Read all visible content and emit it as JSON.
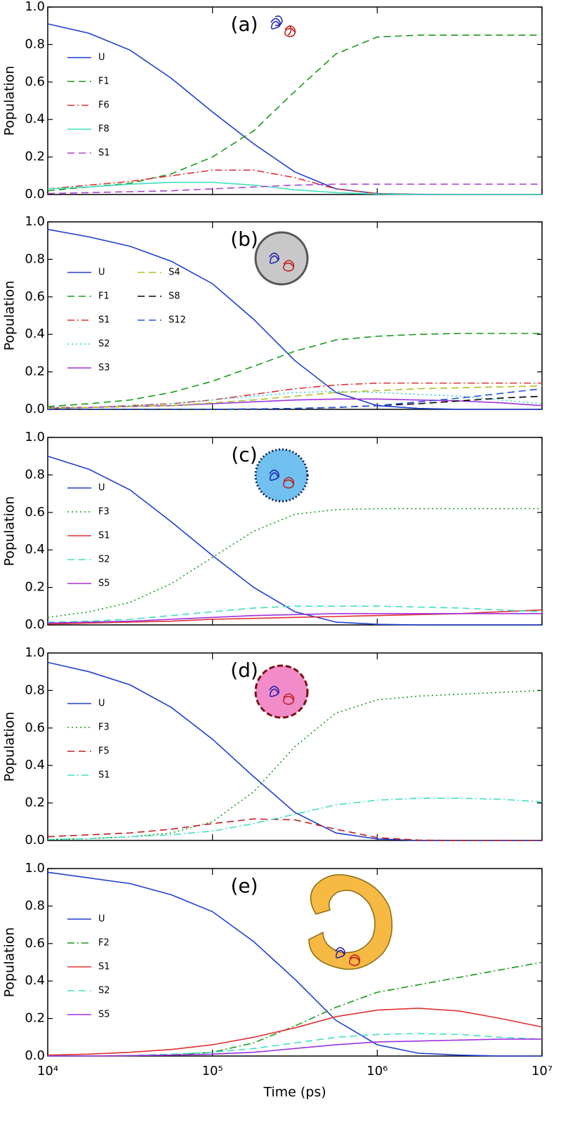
{
  "chart_data": [
    {
      "type": "line",
      "annotation": "(a)",
      "ylabel": "Population",
      "log_x": true,
      "xlim": [
        10000,
        10000000
      ],
      "xticks": [
        10000,
        100000,
        1000000,
        10000000
      ],
      "ylim": [
        0,
        1
      ],
      "yticks": [
        {
          "value": 0,
          "label": "0.0"
        },
        0.2,
        0.4,
        0.6,
        0.8,
        {
          "value": 1,
          "label": "1.0"
        }
      ],
      "x": [
        10000,
        17800,
        31600,
        56200,
        100000,
        178000,
        316000,
        562000,
        1000000,
        1780000,
        3160000,
        5620000,
        10000000
      ],
      "series": [
        {
          "name": "U",
          "color": "#1f3fd0",
          "dash": "solid",
          "values": [
            0.91,
            0.86,
            0.77,
            0.62,
            0.44,
            0.27,
            0.12,
            0.03,
            0.005,
            0.001,
            0,
            0,
            0
          ]
        },
        {
          "name": "F1",
          "color": "#1a9a1a",
          "dash": "dashed",
          "values": [
            0.02,
            0.04,
            0.06,
            0.11,
            0.2,
            0.34,
            0.55,
            0.75,
            0.84,
            0.85,
            0.85,
            0.85,
            0.85
          ]
        },
        {
          "name": "F6",
          "color": "#e03030",
          "dash": "dashdot",
          "values": [
            0.03,
            0.05,
            0.07,
            0.1,
            0.13,
            0.13,
            0.09,
            0.03,
            0.005,
            0,
            0,
            0,
            0
          ]
        },
        {
          "name": "F8",
          "color": "#40e0c0",
          "dash": "solid",
          "values": [
            0.03,
            0.04,
            0.055,
            0.065,
            0.065,
            0.05,
            0.025,
            0.01,
            0.002,
            0,
            0,
            0,
            0
          ]
        },
        {
          "name": "S1",
          "color": "#b040d0",
          "dash": "dashed",
          "values": [
            0.005,
            0.01,
            0.015,
            0.02,
            0.03,
            0.04,
            0.05,
            0.055,
            0.055,
            0.055,
            0.055,
            0.055,
            0.055
          ]
        }
      ]
    },
    {
      "type": "line",
      "annotation": "(b)",
      "ylabel": "Population",
      "log_x": true,
      "xlim": [
        10000,
        10000000
      ],
      "xticks": [
        10000,
        100000,
        1000000,
        10000000
      ],
      "ylim": [
        0,
        1
      ],
      "yticks": [
        {
          "value": 0,
          "label": "0.0"
        },
        0.2,
        0.4,
        0.6,
        0.8,
        {
          "value": 1,
          "label": "1.0"
        }
      ],
      "x": [
        10000,
        17800,
        31600,
        56200,
        100000,
        178000,
        316000,
        562000,
        1000000,
        1780000,
        3160000,
        5620000,
        10000000
      ],
      "series": [
        {
          "name": "U",
          "color": "#1f3fd0",
          "dash": "solid",
          "values": [
            0.96,
            0.92,
            0.87,
            0.79,
            0.67,
            0.48,
            0.26,
            0.09,
            0.02,
            0.005,
            0,
            0,
            0
          ]
        },
        {
          "name": "F1",
          "color": "#1a9a1a",
          "dash": "dashed",
          "values": [
            0.015,
            0.03,
            0.05,
            0.09,
            0.15,
            0.23,
            0.31,
            0.37,
            0.39,
            0.4,
            0.405,
            0.405,
            0.405
          ]
        },
        {
          "name": "S1",
          "color": "#e03030",
          "dash": "dashdot",
          "values": [
            0.01,
            0.01,
            0.02,
            0.03,
            0.05,
            0.08,
            0.11,
            0.13,
            0.14,
            0.14,
            0.14,
            0.14,
            0.14
          ]
        },
        {
          "name": "S2",
          "color": "#30d0d0",
          "dash": "dotted",
          "values": [
            0.01,
            0.01,
            0.02,
            0.03,
            0.05,
            0.07,
            0.09,
            0.095,
            0.09,
            0.08,
            0.07,
            0.05,
            0.03
          ]
        },
        {
          "name": "S3",
          "color": "#a030e0",
          "dash": "solid",
          "values": [
            0.005,
            0.01,
            0.015,
            0.02,
            0.03,
            0.04,
            0.05,
            0.055,
            0.055,
            0.05,
            0.045,
            0.035,
            0.02
          ]
        },
        {
          "name": "S4",
          "color": "#b0c020",
          "dash": "dashed",
          "values": [
            0.005,
            0.01,
            0.015,
            0.02,
            0.035,
            0.05,
            0.07,
            0.09,
            0.1,
            0.11,
            0.115,
            0.12,
            0.125
          ]
        },
        {
          "name": "S8",
          "color": "#000000",
          "dash": "dashed",
          "values": [
            0,
            0,
            0,
            0,
            0,
            0.002,
            0.005,
            0.01,
            0.02,
            0.03,
            0.045,
            0.06,
            0.07
          ]
        },
        {
          "name": "S12",
          "color": "#2050e0",
          "dash": "dashed",
          "values": [
            0,
            0,
            0,
            0,
            0,
            0.002,
            0.005,
            0.01,
            0.02,
            0.04,
            0.06,
            0.085,
            0.11
          ]
        }
      ]
    },
    {
      "type": "line",
      "annotation": "(c)",
      "ylabel": "Population",
      "log_x": true,
      "xlim": [
        10000,
        10000000
      ],
      "xticks": [
        10000,
        100000,
        1000000,
        10000000
      ],
      "ylim": [
        0,
        1
      ],
      "yticks": [
        {
          "value": 0,
          "label": "0.0"
        },
        0.2,
        0.4,
        0.6,
        0.8,
        {
          "value": 1,
          "label": "1.0"
        }
      ],
      "x": [
        10000,
        17800,
        31600,
        56200,
        100000,
        178000,
        316000,
        562000,
        1000000,
        1780000,
        3160000,
        5620000,
        10000000
      ],
      "series": [
        {
          "name": "U",
          "color": "#1f3fd0",
          "dash": "solid",
          "values": [
            0.9,
            0.83,
            0.72,
            0.55,
            0.37,
            0.2,
            0.07,
            0.015,
            0.003,
            0,
            0,
            0,
            0
          ]
        },
        {
          "name": "F3",
          "color": "#1a9a1a",
          "dash": "dotted",
          "values": [
            0.04,
            0.07,
            0.12,
            0.22,
            0.36,
            0.5,
            0.59,
            0.615,
            0.62,
            0.62,
            0.62,
            0.62,
            0.62
          ]
        },
        {
          "name": "S1",
          "color": "#e03030",
          "dash": "solid",
          "values": [
            0.005,
            0.01,
            0.015,
            0.02,
            0.03,
            0.035,
            0.04,
            0.045,
            0.05,
            0.055,
            0.06,
            0.07,
            0.08
          ]
        },
        {
          "name": "S2",
          "color": "#40e0c0",
          "dash": "dashed",
          "values": [
            0.015,
            0.02,
            0.03,
            0.05,
            0.07,
            0.09,
            0.1,
            0.1,
            0.1,
            0.095,
            0.09,
            0.08,
            0.07
          ]
        },
        {
          "name": "S5",
          "color": "#a030e0",
          "dash": "solid",
          "values": [
            0.01,
            0.015,
            0.02,
            0.03,
            0.04,
            0.05,
            0.055,
            0.06,
            0.06,
            0.06,
            0.06,
            0.06,
            0.06
          ]
        }
      ]
    },
    {
      "type": "line",
      "annotation": "(d)",
      "ylabel": "Population",
      "log_x": true,
      "xlim": [
        10000,
        10000000
      ],
      "xticks": [
        10000,
        100000,
        1000000,
        10000000
      ],
      "ylim": [
        0,
        1
      ],
      "yticks": [
        {
          "value": 0,
          "label": "0.0"
        },
        0.2,
        0.4,
        0.6,
        0.8,
        {
          "value": 1,
          "label": "1.0"
        }
      ],
      "x": [
        10000,
        17800,
        31600,
        56200,
        100000,
        178000,
        316000,
        562000,
        1000000,
        1780000,
        3160000,
        5620000,
        10000000
      ],
      "series": [
        {
          "name": "U",
          "color": "#1f3fd0",
          "dash": "solid",
          "values": [
            0.95,
            0.9,
            0.83,
            0.71,
            0.54,
            0.34,
            0.15,
            0.04,
            0.008,
            0,
            0,
            0,
            0
          ]
        },
        {
          "name": "F3",
          "color": "#1a9a1a",
          "dash": "dotted",
          "values": [
            0.005,
            0.01,
            0.02,
            0.04,
            0.1,
            0.26,
            0.5,
            0.68,
            0.75,
            0.77,
            0.78,
            0.79,
            0.8
          ]
        },
        {
          "name": "F5",
          "color": "#c02020",
          "dash": "dashed",
          "values": [
            0.02,
            0.03,
            0.04,
            0.06,
            0.09,
            0.115,
            0.11,
            0.06,
            0.015,
            0.002,
            0,
            0,
            0
          ]
        },
        {
          "name": "S1",
          "color": "#40e0c0",
          "dash": "dashdot",
          "values": [
            0.005,
            0.01,
            0.02,
            0.03,
            0.05,
            0.09,
            0.14,
            0.19,
            0.215,
            0.225,
            0.225,
            0.22,
            0.205
          ]
        }
      ]
    },
    {
      "type": "line",
      "annotation": "(e)",
      "ylabel": "Population",
      "xlabel": "Time (ps)",
      "log_x": true,
      "xlim": [
        10000,
        10000000
      ],
      "xticks": [
        {
          "value": 10000,
          "label": "10⁴"
        },
        {
          "value": 100000,
          "label": "10⁵"
        },
        {
          "value": 1000000,
          "label": "10⁶"
        },
        {
          "value": 10000000,
          "label": "10⁷"
        }
      ],
      "ylim": [
        0,
        1
      ],
      "yticks": [
        {
          "value": 0,
          "label": "0.0"
        },
        0.2,
        0.4,
        0.6,
        0.8,
        {
          "value": 1,
          "label": "1.0"
        }
      ],
      "x": [
        10000,
        17800,
        31600,
        56200,
        100000,
        178000,
        316000,
        562000,
        1000000,
        1780000,
        3160000,
        5620000,
        10000000
      ],
      "series": [
        {
          "name": "U",
          "color": "#1f3fd0",
          "dash": "solid",
          "values": [
            0.98,
            0.95,
            0.92,
            0.86,
            0.77,
            0.61,
            0.41,
            0.19,
            0.06,
            0.015,
            0.005,
            0,
            0
          ]
        },
        {
          "name": "F2",
          "color": "#1a9a1a",
          "dash": "dashdot",
          "values": [
            0,
            0,
            0.002,
            0.005,
            0.02,
            0.07,
            0.16,
            0.26,
            0.34,
            0.38,
            0.42,
            0.46,
            0.5
          ]
        },
        {
          "name": "S1",
          "color": "#e03030",
          "dash": "solid",
          "values": [
            0.005,
            0.01,
            0.02,
            0.035,
            0.06,
            0.1,
            0.15,
            0.21,
            0.245,
            0.255,
            0.24,
            0.2,
            0.155
          ]
        },
        {
          "name": "S2",
          "color": "#40e0c0",
          "dash": "dashed",
          "values": [
            0,
            0,
            0.003,
            0.01,
            0.02,
            0.04,
            0.07,
            0.1,
            0.115,
            0.12,
            0.115,
            0.1,
            0.09
          ]
        },
        {
          "name": "S5",
          "color": "#a030e0",
          "dash": "solid",
          "values": [
            0,
            0,
            0.002,
            0.005,
            0.01,
            0.02,
            0.04,
            0.06,
            0.075,
            0.08,
            0.085,
            0.09,
            0.09
          ]
        }
      ]
    }
  ]
}
